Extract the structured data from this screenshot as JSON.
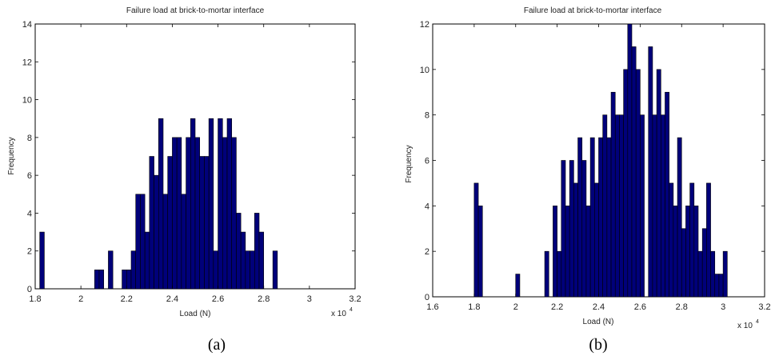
{
  "chart_data": [
    {
      "type": "bar",
      "title": "Failure load at brick-to-mortar interface",
      "xlabel": "Load (N)",
      "ylabel": "Frequency",
      "x_exponent_label": "x 10",
      "x_exponent_power": "4",
      "caption": "(a)",
      "xlim": [
        1.8,
        3.2
      ],
      "ylim": [
        0,
        14
      ],
      "x_scale": 10000,
      "grid": false,
      "bar_color": "#00007a",
      "xticks": [
        "1.8",
        "2",
        "2.2",
        "2.4",
        "2.6",
        "2.8",
        "3",
        "3.2"
      ],
      "yticks": [
        "0",
        "2",
        "4",
        "6",
        "8",
        "10",
        "12",
        "14"
      ],
      "bin_width": 0.02,
      "bin_start": 1.82,
      "values": [
        3,
        0,
        0,
        0,
        0,
        0,
        0,
        0,
        0,
        0,
        0,
        0,
        1,
        1,
        0,
        2,
        0,
        0,
        1,
        1,
        2,
        5,
        5,
        3,
        7,
        6,
        9,
        5,
        7,
        8,
        8,
        5,
        8,
        9,
        8,
        7,
        7,
        9,
        2,
        9,
        8,
        9,
        8,
        4,
        3,
        2,
        2,
        4,
        3,
        0,
        0,
        2
      ]
    },
    {
      "type": "bar",
      "title": "Failure load at brick-to-mortar interface",
      "xlabel": "Load (N)",
      "ylabel": "Frequency",
      "x_exponent_label": "x 10",
      "x_exponent_power": "4",
      "caption": "(b)",
      "xlim": [
        1.6,
        3.2
      ],
      "ylim": [
        0,
        12
      ],
      "x_scale": 10000,
      "grid": false,
      "bar_color": "#00007a",
      "xticks": [
        "1.6",
        "1.8",
        "2",
        "2.2",
        "2.4",
        "2.6",
        "2.8",
        "3",
        "3.2"
      ],
      "yticks": [
        "0",
        "2",
        "4",
        "6",
        "8",
        "10",
        "12"
      ],
      "bin_width": 0.02,
      "bin_start": 1.8,
      "values": [
        5,
        4,
        0,
        0,
        0,
        0,
        0,
        0,
        0,
        0,
        1,
        0,
        0,
        0,
        0,
        0,
        0,
        2,
        0,
        4,
        2,
        6,
        4,
        6,
        5,
        7,
        6,
        4,
        7,
        5,
        7,
        8,
        7,
        9,
        8,
        8,
        10,
        12,
        11,
        10,
        8,
        0,
        11,
        8,
        10,
        8,
        9,
        5,
        4,
        7,
        3,
        4,
        5,
        4,
        2,
        3,
        5,
        2,
        1,
        1,
        2,
        0,
        0,
        0
      ]
    }
  ]
}
